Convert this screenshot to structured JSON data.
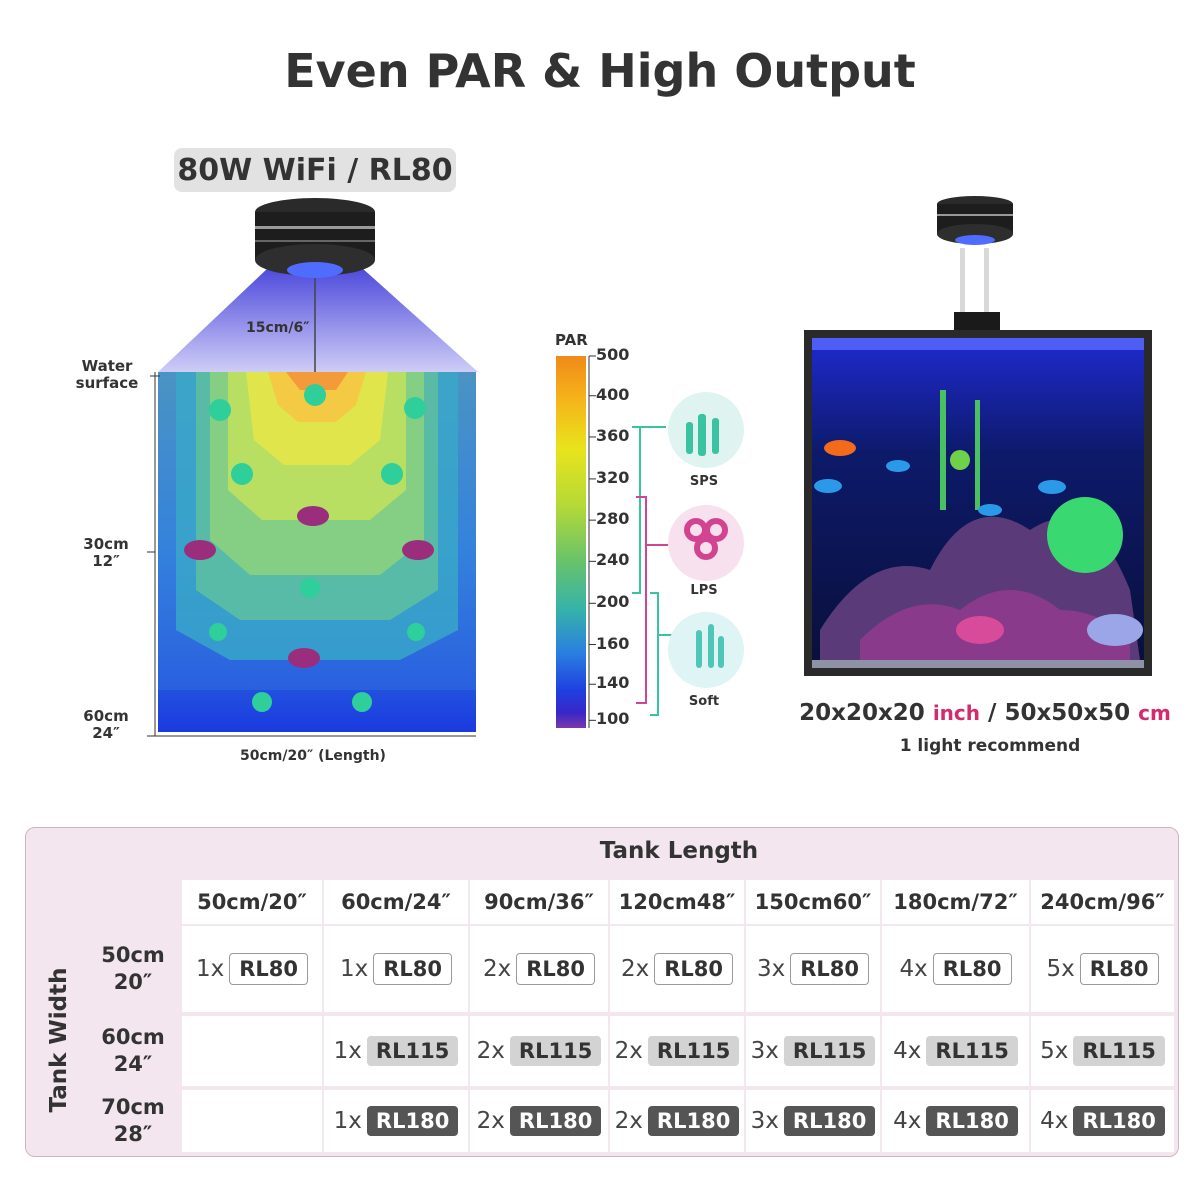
{
  "title": "Even PAR & High Output",
  "model_label": "80W WiFi / RL80",
  "diagram": {
    "height_label": "15cm/6″",
    "water_surface_label": "Water surface",
    "depth_marks": [
      {
        "cm": "30cm",
        "inch": "12″"
      },
      {
        "cm": "60cm",
        "inch": "24″"
      }
    ],
    "length_label": "50cm/20″  (Length)"
  },
  "par_scale": {
    "title": "PAR",
    "ticks": [
      {
        "value": "500",
        "frac": 0.0
      },
      {
        "value": "400",
        "frac": 0.108
      },
      {
        "value": "360",
        "frac": 0.22
      },
      {
        "value": "320",
        "frac": 0.334
      },
      {
        "value": "280",
        "frac": 0.446
      },
      {
        "value": "240",
        "frac": 0.558
      },
      {
        "value": "200",
        "frac": 0.672
      },
      {
        "value": "160",
        "frac": 0.784
      },
      {
        "value": "140",
        "frac": 0.892
      },
      {
        "value": "100",
        "frac": 0.99
      }
    ],
    "corals": [
      {
        "name": "SPS",
        "color": "#39c3a0"
      },
      {
        "name": "LPS",
        "color": "#d2448f"
      },
      {
        "name": "Soft",
        "color": "#3fb6b6"
      }
    ]
  },
  "tank": {
    "size_inch": "20x20x20",
    "unit_inch": "inch",
    "separator": "/",
    "size_cm": "50x50x50",
    "unit_cm": "cm",
    "recommend": "1 light recommend"
  },
  "table": {
    "col_group_label": "Tank Length",
    "row_group_label": "Tank Width",
    "columns": [
      "50cm/20″",
      "60cm/24″",
      "90cm/36″",
      "120cm48″",
      "150cm60″",
      "180cm/72″",
      "240cm/96″"
    ],
    "rows": [
      {
        "cm": "50cm",
        "inch": "20″",
        "style": 1,
        "cells": [
          {
            "count": "1x",
            "model": "RL80"
          },
          {
            "count": "1x",
            "model": "RL80"
          },
          {
            "count": "2x",
            "model": "RL80"
          },
          {
            "count": "2x",
            "model": "RL80"
          },
          {
            "count": "3x",
            "model": "RL80"
          },
          {
            "count": "4x",
            "model": "RL80"
          },
          {
            "count": "5x",
            "model": "RL80"
          }
        ]
      },
      {
        "cm": "60cm",
        "inch": "24″",
        "style": 2,
        "cells": [
          null,
          {
            "count": "1x",
            "model": "RL115"
          },
          {
            "count": "2x",
            "model": "RL115"
          },
          {
            "count": "2x",
            "model": "RL115"
          },
          {
            "count": "3x",
            "model": "RL115"
          },
          {
            "count": "4x",
            "model": "RL115"
          },
          {
            "count": "5x",
            "model": "RL115"
          }
        ]
      },
      {
        "cm": "70cm",
        "inch": "28″",
        "style": 3,
        "cells": [
          null,
          {
            "count": "1x",
            "model": "RL180"
          },
          {
            "count": "2x",
            "model": "RL180"
          },
          {
            "count": "2x",
            "model": "RL180"
          },
          {
            "count": "3x",
            "model": "RL180"
          },
          {
            "count": "4x",
            "model": "RL180"
          },
          {
            "count": "4x",
            "model": "RL180"
          }
        ]
      }
    ]
  }
}
